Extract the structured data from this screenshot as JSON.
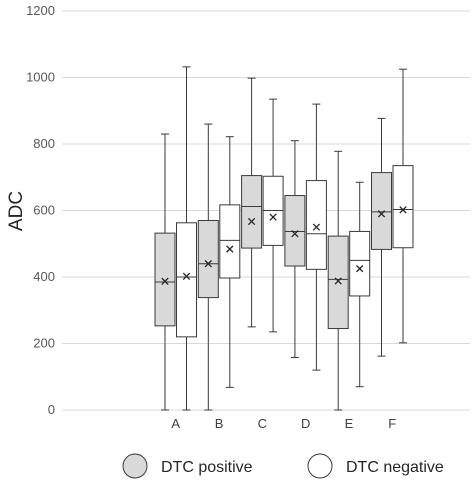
{
  "chart_data": {
    "type": "boxplot",
    "ylabel": "ADC",
    "ylim": [
      0,
      1200
    ],
    "yticks": [
      0,
      200,
      400,
      600,
      800,
      1000,
      1200
    ],
    "grid": true,
    "legend_position": "bottom",
    "categories": [
      "A",
      "B",
      "C",
      "D",
      "E",
      "F"
    ],
    "series": [
      {
        "name": "DTC positive",
        "fill": "#d9d9d9",
        "boxes": [
          {
            "min": 0,
            "q1": 253,
            "median": 385,
            "q3": 532,
            "max": 830,
            "mean": 387
          },
          {
            "min": 0,
            "q1": 338,
            "median": 440,
            "q3": 570,
            "max": 860,
            "mean": 440
          },
          {
            "min": 250,
            "q1": 487,
            "median": 612,
            "q3": 705,
            "max": 998,
            "mean": 567
          },
          {
            "min": 158,
            "q1": 433,
            "median": 537,
            "q3": 645,
            "max": 810,
            "mean": 530
          },
          {
            "min": 0,
            "q1": 245,
            "median": 393,
            "q3": 523,
            "max": 778,
            "mean": 388
          },
          {
            "min": 162,
            "q1": 483,
            "median": 596,
            "q3": 714,
            "max": 877,
            "mean": 590
          }
        ]
      },
      {
        "name": "DTC negative",
        "fill": "#ffffff",
        "boxes": [
          {
            "min": 0,
            "q1": 220,
            "median": 400,
            "q3": 563,
            "max": 1032,
            "mean": 402
          },
          {
            "min": 68,
            "q1": 397,
            "median": 510,
            "q3": 617,
            "max": 822,
            "mean": 484
          },
          {
            "min": 235,
            "q1": 495,
            "median": 600,
            "q3": 703,
            "max": 935,
            "mean": 580
          },
          {
            "min": 120,
            "q1": 423,
            "median": 530,
            "q3": 690,
            "max": 920,
            "mean": 550
          },
          {
            "min": 70,
            "q1": 343,
            "median": 450,
            "q3": 537,
            "max": 685,
            "mean": 425
          },
          {
            "min": 202,
            "q1": 488,
            "median": 603,
            "q3": 735,
            "max": 1025,
            "mean": 602
          }
        ]
      }
    ]
  }
}
